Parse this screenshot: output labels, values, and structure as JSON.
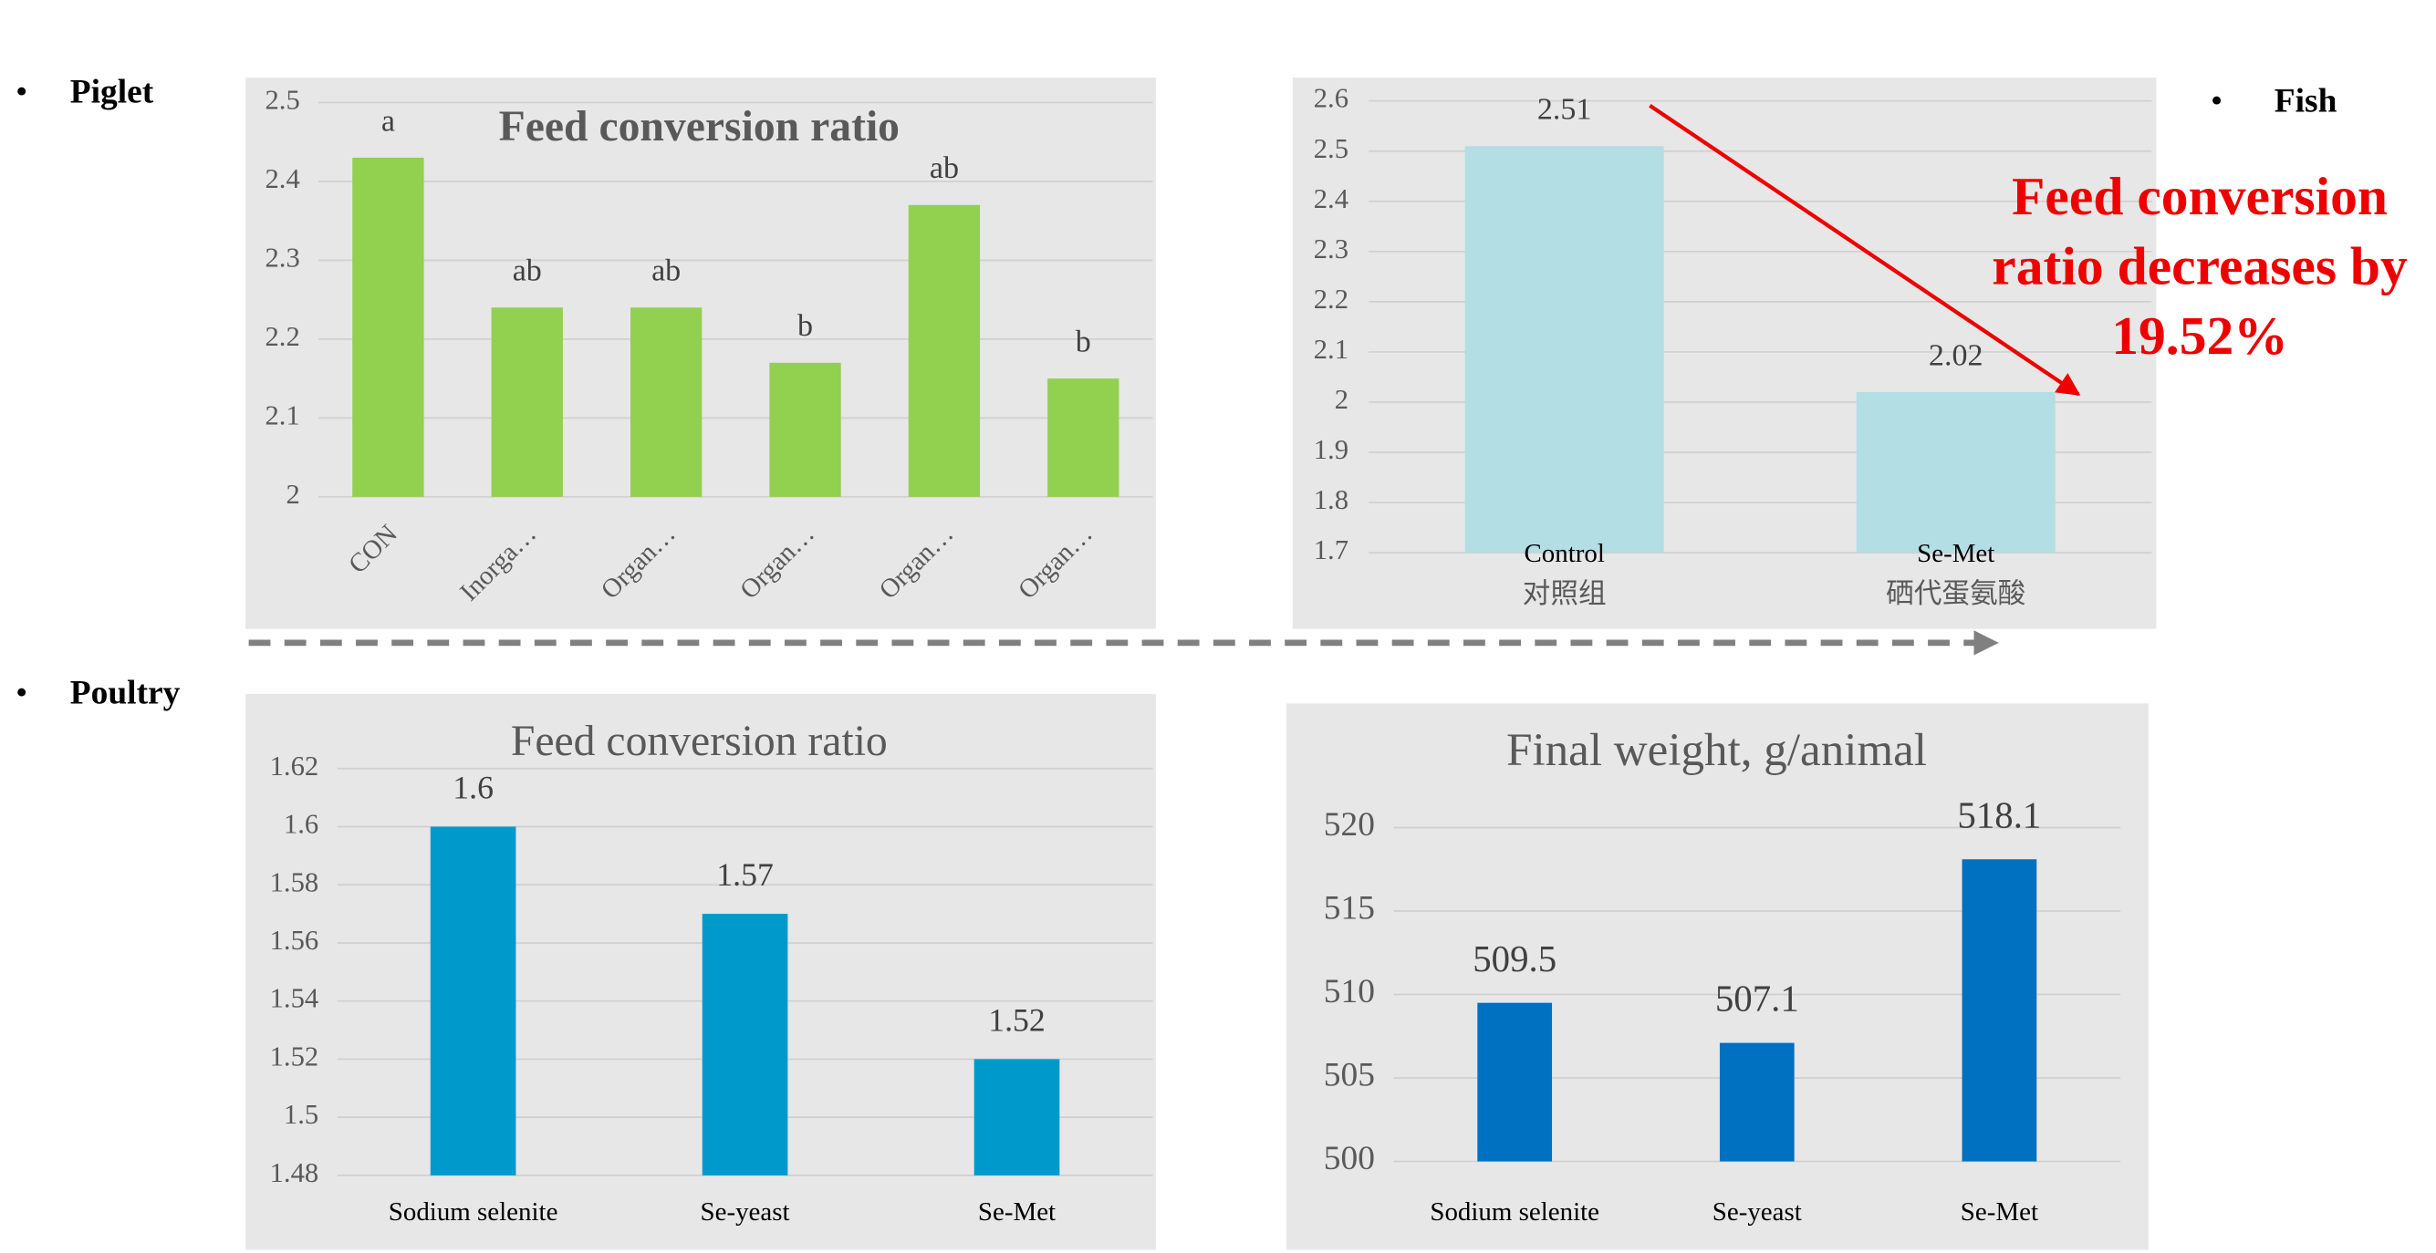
{
  "sections": [
    "Piglet",
    "Fish",
    "Poultry"
  ],
  "chart_data": [
    {
      "type": "bar",
      "title": "Feed conversion ratio",
      "categories": [
        "CON",
        "Inorga…",
        "Organ…",
        "Organ…",
        "Organ…",
        "Organ…"
      ],
      "values": [
        2.43,
        2.24,
        2.24,
        2.17,
        2.37,
        2.15
      ],
      "significance": [
        "a",
        "ab",
        "ab",
        "b",
        "ab",
        "b"
      ],
      "color": "#92d050",
      "ylim": [
        2,
        2.5
      ],
      "yticks": [
        2,
        2.1,
        2.2,
        2.3,
        2.4,
        2.5
      ],
      "grid": true
    },
    {
      "type": "bar",
      "categories": [
        "Control",
        "Se-Met"
      ],
      "subcategories": [
        "对照组",
        "硒代蛋氨酸"
      ],
      "values": [
        2.51,
        2.02
      ],
      "color": "#b3dee3",
      "ylim": [
        1.7,
        2.6
      ],
      "yticks": [
        1.7,
        1.8,
        1.9,
        2,
        2.1,
        2.2,
        2.3,
        2.4,
        2.5,
        2.6
      ],
      "grid": true,
      "annotation": [
        "Feed conversion",
        "ratio decreases by",
        "19.52%"
      ]
    },
    {
      "type": "bar",
      "title": "Feed conversion ratio",
      "categories": [
        "Sodium selenite",
        "Se-yeast",
        "Se-Met"
      ],
      "values": [
        1.6,
        1.57,
        1.52
      ],
      "color": "#0099cc",
      "ylim": [
        1.48,
        1.62
      ],
      "yticks": [
        1.48,
        1.5,
        1.52,
        1.54,
        1.56,
        1.58,
        1.6,
        1.62
      ],
      "grid": true
    },
    {
      "type": "bar",
      "title": "Final weight, g/animal",
      "categories": [
        "Sodium selenite",
        "Se-yeast",
        "Se-Met"
      ],
      "values": [
        509.5,
        507.1,
        518.1
      ],
      "color": "#0070c0",
      "ylim": [
        500,
        520
      ],
      "yticks": [
        500,
        505,
        510,
        515,
        520
      ],
      "grid": true
    }
  ]
}
